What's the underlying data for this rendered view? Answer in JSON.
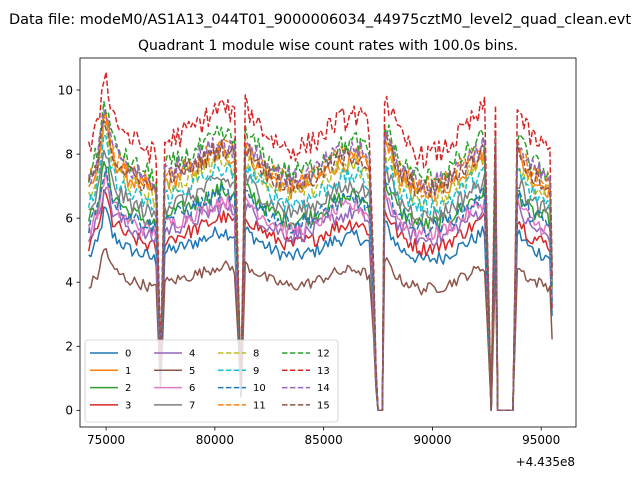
{
  "figure": {
    "suptitle": "Data file: modeM0/AS1A13_044T01_9000006034_44975cztM0_level2_quad_clean.evt"
  },
  "chart_data": {
    "type": "line",
    "title": "Quadrant 1 module wise count rates with 100.0s bins.",
    "xlabel": "",
    "ylabel": "",
    "x_offset_label": "+4.435e8",
    "xlim": [
      73800,
      96600
    ],
    "ylim": [
      -0.52,
      11.0
    ],
    "x_ticks": [
      {
        "value": 75000,
        "label": "75000"
      },
      {
        "value": 80000,
        "label": "80000"
      },
      {
        "value": 85000,
        "label": "85000"
      },
      {
        "value": 90000,
        "label": "90000"
      },
      {
        "value": 95000,
        "label": "95000"
      }
    ],
    "y_ticks": [
      {
        "value": 0,
        "label": "0"
      },
      {
        "value": 2,
        "label": "2"
      },
      {
        "value": 4,
        "label": "4"
      },
      {
        "value": 6,
        "label": "6"
      },
      {
        "value": 8,
        "label": "8"
      },
      {
        "value": 10,
        "label": "10"
      }
    ],
    "grid": false,
    "legend": "lower-left, 4 columns",
    "x_range": [
      74200,
      95500
    ],
    "bin_seconds": 100,
    "shape_profile": [
      [
        74200,
        0.92
      ],
      [
        74600,
        1.0
      ],
      [
        74950,
        1.22
      ],
      [
        75300,
        1.05
      ],
      [
        76000,
        0.97
      ],
      [
        77000,
        0.92
      ],
      [
        77300,
        0.9
      ],
      [
        77500,
        0.18
      ],
      [
        77700,
        0.95
      ],
      [
        78500,
        0.98
      ],
      [
        79500,
        1.03
      ],
      [
        80300,
        1.08
      ],
      [
        80900,
        1.05
      ],
      [
        81200,
        0.1
      ],
      [
        81400,
        1.08
      ],
      [
        82500,
        0.97
      ],
      [
        83500,
        0.92
      ],
      [
        84500,
        0.95
      ],
      [
        85500,
        1.02
      ],
      [
        86500,
        1.05
      ],
      [
        87100,
        1.0
      ],
      [
        87300,
        0.5
      ],
      [
        87450,
        0.0
      ],
      [
        87700,
        0.0
      ],
      [
        87800,
        1.12
      ],
      [
        88500,
        0.97
      ],
      [
        89500,
        0.9
      ],
      [
        90500,
        0.92
      ],
      [
        91500,
        1.0
      ],
      [
        92400,
        1.07
      ],
      [
        92700,
        0.0
      ],
      [
        92900,
        1.08
      ],
      [
        93000,
        0.0
      ],
      [
        93700,
        0.0
      ],
      [
        93900,
        1.07
      ],
      [
        94500,
        0.97
      ],
      [
        95400,
        0.92
      ],
      [
        95500,
        0.55
      ]
    ],
    "series": [
      {
        "name": "0",
        "color": "#1f77b4",
        "style": "solid",
        "base": 5.2
      },
      {
        "name": "1",
        "color": "#ff7f0e",
        "style": "solid",
        "base": 7.5
      },
      {
        "name": "2",
        "color": "#2ca02c",
        "style": "solid",
        "base": 6.4
      },
      {
        "name": "3",
        "color": "#d62728",
        "style": "solid",
        "base": 5.6
      },
      {
        "name": "4",
        "color": "#9467bd",
        "style": "solid",
        "base": 5.9
      },
      {
        "name": "5",
        "color": "#8c564b",
        "style": "solid",
        "base": 4.2
      },
      {
        "name": "6",
        "color": "#e377c2",
        "style": "solid",
        "base": 6.1
      },
      {
        "name": "7",
        "color": "#7f7f7f",
        "style": "solid",
        "base": 6.7
      },
      {
        "name": "8",
        "color": "#bcbd22",
        "style": "dashed",
        "base": 7.3
      },
      {
        "name": "9",
        "color": "#17becf",
        "style": "dashed",
        "base": 7.0
      },
      {
        "name": "10",
        "color": "#1f77b4",
        "style": "dashed",
        "base": 6.3
      },
      {
        "name": "11",
        "color": "#ff7f0e",
        "style": "dashed",
        "base": 7.7
      },
      {
        "name": "12",
        "color": "#2ca02c",
        "style": "dashed",
        "base": 8.0
      },
      {
        "name": "13",
        "color": "#d62728",
        "style": "dashed",
        "base": 8.8
      },
      {
        "name": "14",
        "color": "#9467bd",
        "style": "dashed",
        "base": 7.8
      },
      {
        "name": "15",
        "color": "#8c564b",
        "style": "dashed",
        "base": 7.6
      }
    ]
  }
}
